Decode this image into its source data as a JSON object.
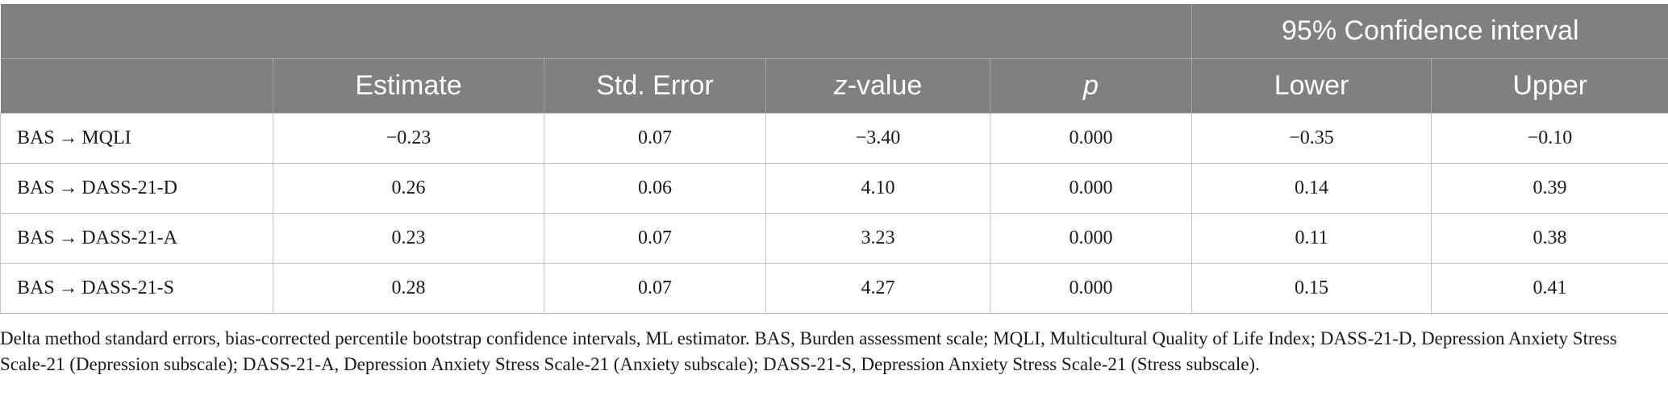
{
  "table": {
    "header_group": {
      "ci_label": "95% Confidence interval"
    },
    "columns": [
      "",
      "Estimate",
      "Std. Error",
      "z-value",
      "p",
      "Lower",
      "Upper"
    ],
    "z_header": {
      "italic_part": "z",
      "rest": "-value"
    },
    "rows": [
      {
        "label": "BAS → MQLI",
        "estimate": "−0.23",
        "std_error": "0.07",
        "z_value": "−3.40",
        "p": "0.000",
        "lower": "−0.35",
        "upper": "−0.10"
      },
      {
        "label": "BAS → DASS-21-D",
        "estimate": "0.26",
        "std_error": "0.06",
        "z_value": "4.10",
        "p": "0.000",
        "lower": "0.14",
        "upper": "0.39"
      },
      {
        "label": "BAS → DASS-21-A",
        "estimate": "0.23",
        "std_error": "0.07",
        "z_value": "3.23",
        "p": "0.000",
        "lower": "0.11",
        "upper": "0.38"
      },
      {
        "label": "BAS → DASS-21-S",
        "estimate": "0.28",
        "std_error": "0.07",
        "z_value": "4.27",
        "p": "0.000",
        "lower": "0.15",
        "upper": "0.41"
      }
    ]
  },
  "footnote": "Delta method standard errors, bias-corrected percentile bootstrap confidence intervals, ML estimator. BAS, Burden assessment scale; MQLI, Multicultural Quality of Life Index; DASS-21-D, Depression Anxiety Stress Scale-21 (Depression subscale); DASS-21-A, Depression Anxiety Stress Scale-21 (Anxiety subscale); DASS-21-S, Depression Anxiety Stress Scale-21 (Stress subscale).",
  "colors": {
    "header_bg": "#7f807f",
    "header_text": "#ffffff",
    "grid_line": "#c4c4c4"
  }
}
